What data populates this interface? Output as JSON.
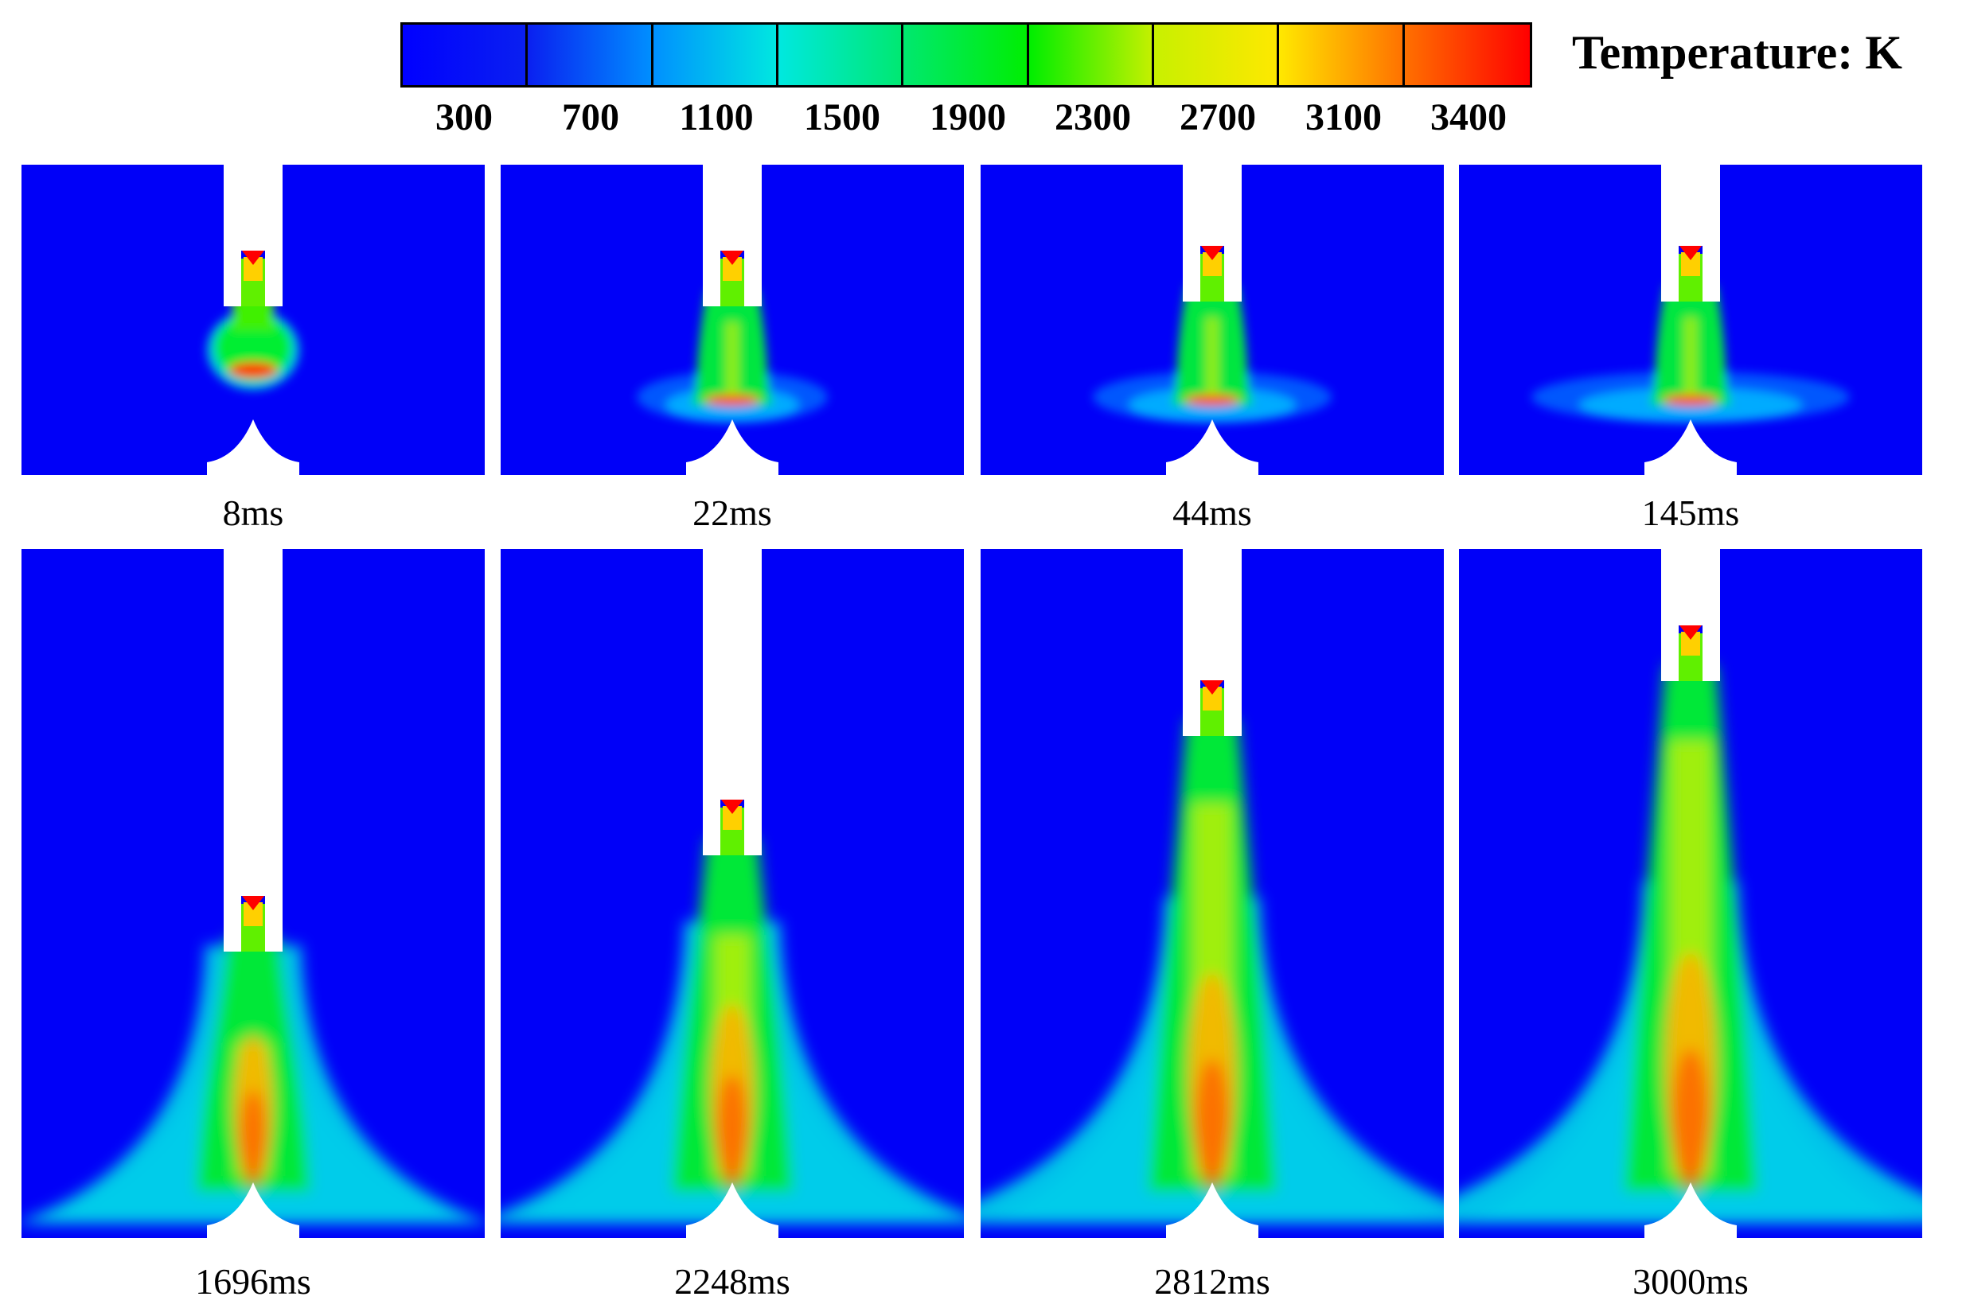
{
  "colorbar": {
    "title": "Temperature: K",
    "ticks": [
      "300",
      "700",
      "1100",
      "1500",
      "1900",
      "2300",
      "2700",
      "3100",
      "3400"
    ],
    "colors": [
      "#0000ff",
      "#0a20f0",
      "#0090ff",
      "#00e8e0",
      "#00e870",
      "#00ee00",
      "#c8f000",
      "#ffe800",
      "#ff7000",
      "#ff0000"
    ]
  },
  "panels": [
    {
      "label": "8ms"
    },
    {
      "label": "22ms"
    },
    {
      "label": "44ms"
    },
    {
      "label": "145ms"
    },
    {
      "label": "1696ms"
    },
    {
      "label": "2248ms"
    },
    {
      "label": "2812ms"
    },
    {
      "label": "3000ms"
    }
  ]
}
